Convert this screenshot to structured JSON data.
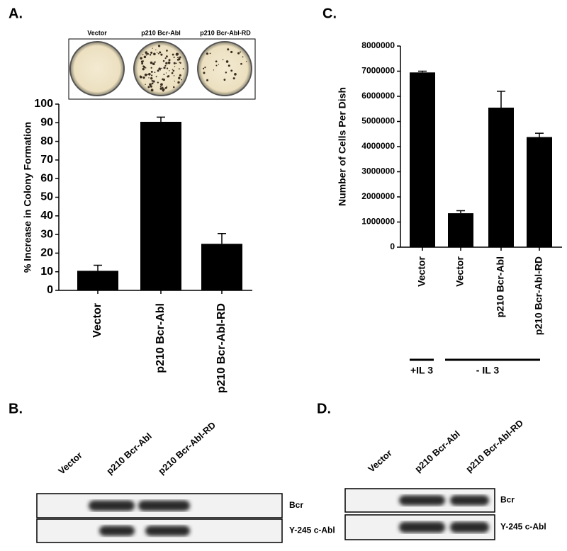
{
  "chart_data": [
    {
      "type": "bar",
      "panel": "A.",
      "dish_labels": [
        "Vector",
        "p210 Bcr-Abl",
        "p210 Bcr-Abl-RD"
      ],
      "y_label": "% Increase in Colony Formation",
      "categories": [
        "Vector",
        "p210 Bcr-Abl",
        "p210 Bcr-Abl-RD"
      ],
      "values": [
        10.5,
        90.5,
        25
      ],
      "errors": [
        3,
        2.5,
        5.5
      ],
      "color": "#000000",
      "ylim": [
        0,
        100
      ],
      "yticks": [
        0,
        10,
        20,
        30,
        40,
        50,
        60,
        70,
        80,
        90,
        100
      ]
    },
    {
      "type": "bar",
      "panel": "C.",
      "y_label": "Number of Cells Per Dish",
      "categories": [
        "Vector",
        "Vector",
        "p210 Bcr-Abl",
        "p210 Bcr-Abl-RD"
      ],
      "values": [
        6950000,
        1350000,
        5550000,
        4380000
      ],
      "errors": [
        50000,
        100000,
        650000,
        150000
      ],
      "color": "#000000",
      "ylim": [
        0,
        8000000
      ],
      "yticks": [
        0,
        1000000,
        2000000,
        3000000,
        4000000,
        5000000,
        6000000,
        7000000,
        8000000
      ],
      "groups": [
        "+IL 3",
        "- IL 3"
      ]
    }
  ],
  "blots": [
    {
      "panel": "B.",
      "lanes": [
        "Vector",
        "p210 Bcr-Abl",
        "p210 Bcr-Abl-RD"
      ],
      "rows": [
        "Bcr",
        "Y-245 c-Abl"
      ]
    },
    {
      "panel": "D.",
      "lanes": [
        "Vector",
        "p210 Bcr-Abl",
        "p210 Bcr-Abl-RD"
      ],
      "rows": [
        "Bcr",
        "Y-245 c-Abl"
      ]
    }
  ]
}
